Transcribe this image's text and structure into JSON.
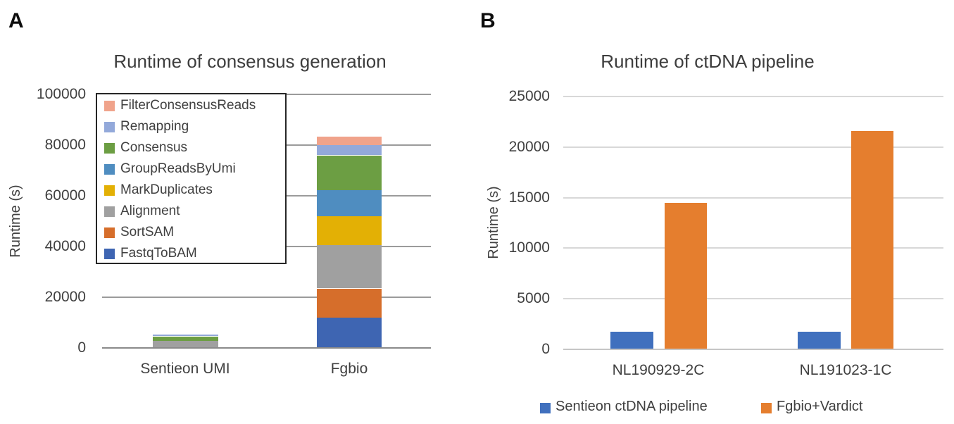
{
  "figure": {
    "panel_a_label": "A",
    "panel_b_label": "B",
    "background": "#ffffff"
  },
  "colors": {
    "title_text": "#3d3d3d",
    "axis_text": "#404040",
    "gridline_a": "#9b9b9b",
    "axis_line_a": "#8a8a8a",
    "gridline_b": "#d8d8d8",
    "axis_line_b": "#c6c6c6",
    "legend_border": "#262626"
  },
  "chart_data": [
    {
      "panel": "A",
      "type": "bar",
      "stacking": "stacked",
      "title": "Runtime of consensus generation",
      "xlabel": "",
      "ylabel": "Runtime (s)",
      "ylim": [
        0,
        100000
      ],
      "yticks": [
        "0",
        "20000",
        "40000",
        "60000",
        "80000",
        "100000"
      ],
      "grid": true,
      "legend_position": "upper-left-overlay-box",
      "categories": [
        "Sentieon UMI",
        "Fgbio"
      ],
      "series": [
        {
          "name": "FastqToBAM",
          "color": "#3E65B2",
          "values": [
            0,
            11800
          ]
        },
        {
          "name": "SortSAM",
          "color": "#D66E2B",
          "values": [
            0,
            11400
          ]
        },
        {
          "name": "Alignment",
          "color": "#A0A0A0",
          "values": [
            2600,
            17000
          ]
        },
        {
          "name": "MarkDuplicates",
          "color": "#E3B005",
          "values": [
            0,
            11400
          ]
        },
        {
          "name": "GroupReadsByUmi",
          "color": "#4F8DC0",
          "values": [
            0,
            10400
          ]
        },
        {
          "name": "Consensus",
          "color": "#6C9E43",
          "values": [
            1800,
            13700
          ]
        },
        {
          "name": "Remapping",
          "color": "#93A9DA",
          "values": [
            500,
            4000
          ]
        },
        {
          "name": "FilterConsensusReads",
          "color": "#F0A38B",
          "values": [
            0,
            3400
          ]
        }
      ],
      "legend_order_top_to_bottom": [
        "FilterConsensusReads",
        "Remapping",
        "Consensus",
        "GroupReadsByUmi",
        "MarkDuplicates",
        "Alignment",
        "SortSAM",
        "FastqToBAM"
      ],
      "totals": {
        "Sentieon UMI": 4900,
        "Fgbio": 83100
      }
    },
    {
      "panel": "B",
      "type": "bar",
      "stacking": "grouped",
      "title": "Runtime of ctDNA pipeline",
      "xlabel": "",
      "ylabel": "Runtime (s)",
      "ylim": [
        0,
        25000
      ],
      "yticks": [
        "0",
        "5000",
        "10000",
        "15000",
        "20000",
        "25000"
      ],
      "grid": true,
      "legend_position": "bottom",
      "categories": [
        "NL190929-2C",
        "NL191023-1C"
      ],
      "series": [
        {
          "name": "Sentieon ctDNA pipeline",
          "color": "#4070BE",
          "values": [
            1700,
            1700
          ]
        },
        {
          "name": "Fgbio+Vardict",
          "color": "#E57E2E",
          "values": [
            14400,
            21500
          ]
        }
      ]
    }
  ]
}
